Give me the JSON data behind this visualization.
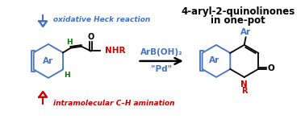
{
  "bg_color": "#ffffff",
  "title_text": "4-aryl-2-quinolinones",
  "title_sub": "in one-pot",
  "title_color": "#000000",
  "arrow_color": "#000000",
  "blue_color": "#4472C4",
  "red_color": "#CC0000",
  "green_color": "#007700",
  "reagent_text1": "ArB(OH)₂",
  "reagent_text2": "\"Pd\"",
  "heck_label": "oxidative Heck reaction",
  "amination_label": "intramolecular C–H amination"
}
